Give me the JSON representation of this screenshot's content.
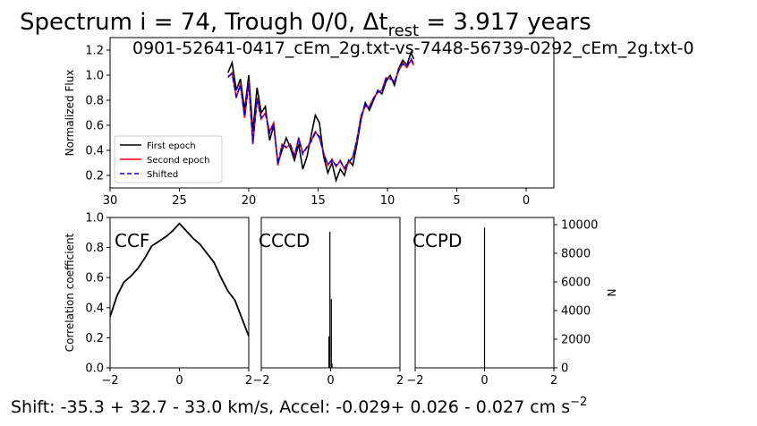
{
  "figure": {
    "title_prefix": "Spectrum i = 74, Trough 0/0, Δt",
    "title_sub": "rest",
    "title_suffix": " = 3.917 years",
    "subtitle": "0901-52641-0417_cEm_2g.txt-vs-7448-56739-0292_cEm_2g.txt-0",
    "footer_main": "Shift: -35.3 +  32.7 -  33.0 km/s, Accel: -0.029+ 0.026 - 0.027 cm s",
    "footer_sup": "−2"
  },
  "colors": {
    "first": "#000000",
    "second": "#ff0000",
    "shifted": "#0000ff"
  },
  "chart_data": [
    {
      "id": "spectrum",
      "type": "line",
      "xlabel": "",
      "ylabel": "Normalized Flux",
      "xlim": [
        30,
        -2
      ],
      "ylim": [
        0.1,
        1.3
      ],
      "xticks": [
        30,
        25,
        20,
        15,
        10,
        5,
        0
      ],
      "yticks": [
        0.2,
        0.4,
        0.6,
        0.8,
        1.0,
        1.2
      ],
      "xtick_labels": [
        "30",
        "25",
        "20",
        "15",
        "10",
        "5",
        "0"
      ],
      "ytick_labels": [
        "0.2",
        "0.4",
        "0.6",
        "0.8",
        "1.0",
        "1.2"
      ],
      "legend": {
        "placement": "lower-left",
        "entries": [
          "First epoch",
          "Second epoch",
          "Shifted"
        ]
      },
      "series": [
        {
          "name": "First epoch",
          "x": [
            21.5,
            21.2,
            20.9,
            20.6,
            20.3,
            20.0,
            19.7,
            19.4,
            19.1,
            18.8,
            18.5,
            18.2,
            17.9,
            17.6,
            17.3,
            17.0,
            16.7,
            16.4,
            16.1,
            15.8,
            15.5,
            15.2,
            14.9,
            14.6,
            14.3,
            14.0,
            13.7,
            13.4,
            13.1,
            12.8,
            12.5,
            12.2,
            11.9,
            11.6,
            11.3,
            11.0,
            10.7,
            10.4,
            10.1,
            9.8,
            9.5,
            9.2,
            8.9,
            8.6,
            8.3,
            8.1
          ],
          "y": [
            1.02,
            1.1,
            0.88,
            0.97,
            0.72,
            1.0,
            0.55,
            0.9,
            0.7,
            0.75,
            0.48,
            0.6,
            0.3,
            0.4,
            0.5,
            0.42,
            0.32,
            0.45,
            0.25,
            0.35,
            0.52,
            0.68,
            0.62,
            0.35,
            0.22,
            0.3,
            0.16,
            0.25,
            0.2,
            0.32,
            0.28,
            0.45,
            0.65,
            0.78,
            0.72,
            0.8,
            0.88,
            0.85,
            0.95,
            1.0,
            0.92,
            1.05,
            1.12,
            1.08,
            1.18,
            1.13
          ]
        },
        {
          "name": "Second epoch",
          "x": [
            21.5,
            21.2,
            20.9,
            20.6,
            20.3,
            20.0,
            19.7,
            19.4,
            19.1,
            18.8,
            18.5,
            18.2,
            17.9,
            17.6,
            17.3,
            17.0,
            16.7,
            16.4,
            16.1,
            15.8,
            15.5,
            15.2,
            14.9,
            14.6,
            14.3,
            14.0,
            13.7,
            13.4,
            13.1,
            12.8,
            12.5,
            12.2,
            11.9,
            11.6,
            11.3,
            11.0,
            10.7,
            10.4,
            10.1,
            9.8,
            9.5,
            9.2,
            8.9,
            8.6,
            8.3,
            8.1
          ],
          "y": [
            0.98,
            1.02,
            0.82,
            0.93,
            0.66,
            0.95,
            0.45,
            0.82,
            0.65,
            0.7,
            0.55,
            0.62,
            0.28,
            0.45,
            0.42,
            0.45,
            0.35,
            0.5,
            0.38,
            0.42,
            0.48,
            0.55,
            0.5,
            0.38,
            0.28,
            0.33,
            0.27,
            0.32,
            0.25,
            0.3,
            0.35,
            0.48,
            0.68,
            0.75,
            0.75,
            0.82,
            0.86,
            0.88,
            0.98,
            0.97,
            0.95,
            1.03,
            1.1,
            1.06,
            1.12,
            1.08
          ]
        },
        {
          "name": "Shifted",
          "x": [
            21.5,
            21.2,
            20.9,
            20.6,
            20.3,
            20.0,
            19.7,
            19.4,
            19.1,
            18.8,
            18.5,
            18.2,
            17.9,
            17.6,
            17.3,
            17.0,
            16.7,
            16.4,
            16.1,
            15.8,
            15.5,
            15.2,
            14.9,
            14.6,
            14.3,
            14.0,
            13.7,
            13.4,
            13.1,
            12.8,
            12.5,
            12.2,
            11.9,
            11.6,
            11.3,
            11.0,
            10.7,
            10.4,
            10.1,
            9.8,
            9.5,
            9.2,
            8.9,
            8.6,
            8.3,
            8.1
          ],
          "y": [
            0.99,
            1.01,
            0.83,
            0.92,
            0.67,
            0.94,
            0.46,
            0.81,
            0.66,
            0.69,
            0.54,
            0.61,
            0.29,
            0.44,
            0.43,
            0.44,
            0.36,
            0.49,
            0.37,
            0.43,
            0.47,
            0.54,
            0.51,
            0.37,
            0.29,
            0.32,
            0.28,
            0.31,
            0.26,
            0.31,
            0.34,
            0.49,
            0.67,
            0.76,
            0.74,
            0.81,
            0.87,
            0.87,
            0.97,
            0.98,
            0.94,
            1.04,
            1.09,
            1.07,
            1.13,
            1.09
          ]
        }
      ]
    },
    {
      "id": "ccf",
      "type": "line",
      "label": "CCF",
      "ylabel": "Correlation coefficient",
      "xlim": [
        -2,
        2
      ],
      "ylim": [
        0,
        1
      ],
      "xticks": [
        -2,
        0,
        2
      ],
      "yticks": [
        0.0,
        0.2,
        0.4,
        0.6,
        0.8,
        1.0
      ],
      "xtick_labels": [
        "−2",
        "0",
        "2"
      ],
      "ytick_labels": [
        "0.0",
        "0.2",
        "0.4",
        "0.6",
        "0.8",
        "1.0"
      ],
      "series": [
        {
          "x": [
            -2.0,
            -1.8,
            -1.6,
            -1.4,
            -1.2,
            -1.0,
            -0.8,
            -0.6,
            -0.4,
            -0.2,
            0.0,
            0.2,
            0.4,
            0.6,
            0.8,
            1.0,
            1.2,
            1.4,
            1.6,
            1.8,
            2.0
          ],
          "y": [
            0.34,
            0.48,
            0.57,
            0.61,
            0.66,
            0.73,
            0.81,
            0.84,
            0.87,
            0.91,
            0.96,
            0.91,
            0.86,
            0.82,
            0.76,
            0.7,
            0.6,
            0.51,
            0.45,
            0.33,
            0.21
          ]
        }
      ]
    },
    {
      "id": "cccd",
      "type": "bar",
      "label": "CCCD",
      "xlim": [
        -2,
        2
      ],
      "ylim": [
        0,
        10500
      ],
      "xticks": [
        -2,
        0,
        2
      ],
      "xtick_labels": [
        "−2",
        "0",
        "2"
      ],
      "x": [
        -0.05,
        -0.02,
        0.02,
        0.04
      ],
      "values": [
        2200,
        9500,
        4800,
        300
      ]
    },
    {
      "id": "ccpd",
      "type": "bar",
      "label": "CCPD",
      "ylabel": "N",
      "xlim": [
        -2,
        2
      ],
      "ylim": [
        0,
        10500
      ],
      "xticks": [
        -2,
        0,
        2
      ],
      "yticks": [
        0,
        2000,
        4000,
        6000,
        8000,
        10000
      ],
      "xtick_labels": [
        "−2",
        "0",
        "2"
      ],
      "ytick_labels": [
        "0",
        "2000",
        "4000",
        "6000",
        "8000",
        "10000"
      ],
      "x": [
        0.0
      ],
      "values": [
        9800
      ]
    }
  ]
}
